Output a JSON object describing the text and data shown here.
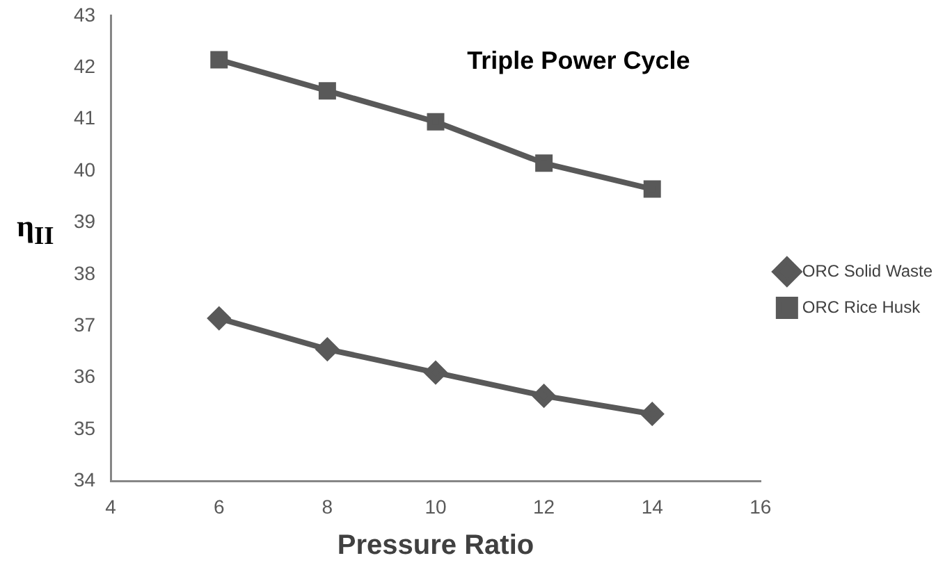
{
  "chart_data": {
    "type": "line",
    "title": "Triple Power Cycle",
    "xlabel": "Pressure Ratio",
    "ylabel": "η$_{II}$",
    "x": [
      6,
      8,
      10,
      12,
      14
    ],
    "series": [
      {
        "name": "ORC Solid Waste",
        "color": "#595959",
        "marker": "diamond",
        "values": [
          37.15,
          36.55,
          36.1,
          35.65,
          35.3
        ]
      },
      {
        "name": "ORC Rice Husk",
        "color": "#595959",
        "marker": "square",
        "values": [
          42.15,
          41.55,
          40.95,
          40.15,
          39.65
        ]
      }
    ],
    "xlim": [
      4,
      16
    ],
    "xticks": [
      4,
      6,
      8,
      10,
      12,
      14,
      16
    ],
    "ylim": [
      34,
      43
    ],
    "yticks": [
      34,
      35,
      36,
      37,
      38,
      39,
      40,
      41,
      42,
      43
    ],
    "grid": false,
    "legend": "right",
    "line_style": "solid"
  }
}
